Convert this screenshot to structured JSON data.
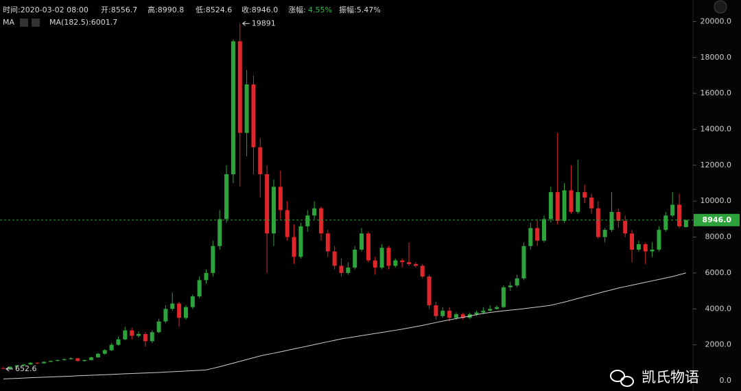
{
  "header": {
    "time": "时间:2020-03-02 08:00",
    "open": "开:8556.7",
    "high": "高:8990.8",
    "low": "低:8524.6",
    "close": "收:8946.0",
    "change_label": "涨幅:",
    "change": "4.55%",
    "amplitude": "振幅:5.47%",
    "ma_title": "MA",
    "ma_value": "MA(182.5):6001.7"
  },
  "watermark": "凯氏物语",
  "chart_data": {
    "type": "candlestick",
    "up_color": "#2fa33b",
    "down_color": "#e0262a",
    "ylim": [
      0,
      21200
    ],
    "yticks": [
      {
        "value": 0,
        "label": "0.0"
      },
      {
        "value": 2000,
        "label": "2000.0"
      },
      {
        "value": 4000,
        "label": "4000.0"
      },
      {
        "value": 6000,
        "label": "6000.0"
      },
      {
        "value": 8000,
        "label": "8000.0"
      },
      {
        "value": 10000,
        "label": "10000.0"
      },
      {
        "value": 12000,
        "label": "12000.0"
      },
      {
        "value": 14000,
        "label": "14000.0"
      },
      {
        "value": 16000,
        "label": "16000.0"
      },
      {
        "value": 18000,
        "label": "18000.0"
      },
      {
        "value": 20000,
        "label": "20000.0"
      }
    ],
    "last_price": {
      "value": 8946.0,
      "label": "8946.0",
      "color": "#2fa33b"
    },
    "annotations": [
      {
        "value": 19891,
        "label": "19891",
        "index": 35
      },
      {
        "value": 652.6,
        "label": "652.6",
        "index": 0
      }
    ],
    "open": [
      700,
      680,
      780,
      850,
      900,
      1000,
      970,
      1050,
      1100,
      1150,
      1200,
      1250,
      1100,
      1150,
      1300,
      1500,
      1700,
      2000,
      2300,
      2800,
      2500,
      2600,
      2200,
      2700,
      3300,
      4000,
      4300,
      3500,
      4100,
      4700,
      5600,
      6000,
      7500,
      9000,
      11500,
      18900,
      13800,
      16500,
      13000,
      11500,
      8200,
      10800,
      9500,
      8000,
      6900,
      8600,
      9200,
      9600,
      8200,
      7200,
      6400,
      6000,
      6300,
      7300,
      8200,
      6700,
      6300,
      7400,
      6400,
      6700,
      6600,
      6500,
      6400,
      5800,
      4200,
      3600,
      3900,
      3500,
      3700,
      3500,
      3700,
      3800,
      3900,
      4000,
      4100,
      5200,
      5300,
      5700,
      7500,
      8500,
      7800,
      9000,
      10500,
      8900,
      10600,
      9400,
      10500,
      10200,
      9600,
      8000,
      8400,
      9400,
      8900,
      8200,
      7300,
      7600,
      7200,
      7300,
      8400,
      9200,
      9800,
      8556.7
    ],
    "high": [
      760,
      800,
      880,
      930,
      1030,
      1020,
      1080,
      1130,
      1180,
      1240,
      1300,
      1270,
      1180,
      1350,
      1550,
      1750,
      2100,
      2450,
      3000,
      2950,
      2750,
      2700,
      2800,
      3450,
      4200,
      4900,
      4400,
      4200,
      4800,
      5800,
      6200,
      7800,
      9500,
      12000,
      19000,
      19891,
      17300,
      17000,
      13500,
      12000,
      11200,
      11700,
      10000,
      8700,
      8800,
      9500,
      10000,
      9700,
      8400,
      7500,
      6800,
      6600,
      7500,
      8500,
      8300,
      6900,
      7600,
      7500,
      6800,
      6800,
      7700,
      6600,
      6500,
      5900,
      4400,
      4100,
      4100,
      3800,
      3800,
      3800,
      3900,
      4100,
      4200,
      4200,
      5300,
      5500,
      5900,
      7700,
      8800,
      9000,
      9200,
      10800,
      13800,
      11000,
      12000,
      12300,
      10900,
      10400,
      10000,
      8500,
      10500,
      9600,
      9200,
      8400,
      7800,
      7700,
      7700,
      8600,
      9400,
      10500,
      10400,
      8990.8
    ],
    "low": [
      652.6,
      670,
      760,
      820,
      880,
      930,
      950,
      1020,
      1080,
      1120,
      1180,
      1050,
      1060,
      1130,
      1280,
      1450,
      1650,
      1950,
      2250,
      2300,
      2400,
      1900,
      2100,
      2650,
      3200,
      3900,
      3000,
      3400,
      4000,
      4600,
      5400,
      5800,
      7300,
      8800,
      11000,
      10800,
      12500,
      11500,
      10200,
      6000,
      7500,
      9000,
      7800,
      6500,
      6800,
      8300,
      9000,
      7800,
      6900,
      6200,
      5800,
      5900,
      6200,
      7200,
      6600,
      5900,
      6200,
      6200,
      6300,
      6300,
      6400,
      6300,
      5700,
      4000,
      3400,
      3500,
      3300,
      3400,
      3400,
      3450,
      3600,
      3700,
      3850,
      3950,
      4050,
      5000,
      5200,
      5600,
      7300,
      7500,
      7700,
      8800,
      8700,
      8800,
      9300,
      9300,
      9900,
      9300,
      7900,
      7700,
      8300,
      8500,
      8000,
      6600,
      7200,
      6500,
      6900,
      7200,
      8300,
      9100,
      8500,
      8524.6
    ],
    "close": [
      680,
      780,
      850,
      900,
      1000,
      970,
      1050,
      1100,
      1150,
      1200,
      1250,
      1100,
      1150,
      1300,
      1500,
      1700,
      2000,
      2300,
      2800,
      2500,
      2600,
      2200,
      2700,
      3300,
      4000,
      4300,
      3500,
      4100,
      4700,
      5600,
      6000,
      7500,
      9000,
      11500,
      18900,
      13800,
      16500,
      13000,
      11500,
      8200,
      10800,
      9500,
      8000,
      6900,
      8600,
      9200,
      9600,
      8200,
      7200,
      6400,
      6000,
      6300,
      7300,
      8200,
      6700,
      6300,
      7400,
      6400,
      6700,
      6600,
      6500,
      6400,
      5800,
      4200,
      3600,
      3900,
      3500,
      3700,
      3500,
      3700,
      3800,
      3900,
      4000,
      4100,
      5200,
      5300,
      5700,
      7500,
      8500,
      7800,
      9000,
      10500,
      8900,
      10600,
      9400,
      10500,
      10200,
      9600,
      8000,
      8400,
      9400,
      8900,
      8200,
      7300,
      7600,
      7200,
      7300,
      8400,
      9200,
      9800,
      8600,
      8946.0
    ],
    "ma": {
      "color": "#d0d0d0",
      "values": [
        100,
        115,
        130,
        150,
        165,
        180,
        195,
        210,
        225,
        240,
        255,
        275,
        290,
        305,
        320,
        335,
        350,
        370,
        385,
        400,
        415,
        430,
        445,
        460,
        480,
        500,
        520,
        540,
        560,
        580,
        600,
        690,
        780,
        880,
        980,
        1080,
        1180,
        1280,
        1380,
        1460,
        1530,
        1610,
        1690,
        1770,
        1850,
        1930,
        2010,
        2090,
        2170,
        2250,
        2330,
        2390,
        2450,
        2510,
        2570,
        2630,
        2690,
        2750,
        2810,
        2870,
        2940,
        3010,
        3080,
        3160,
        3240,
        3320,
        3390,
        3460,
        3530,
        3600,
        3680,
        3750,
        3800,
        3850,
        3890,
        3930,
        3970,
        4010,
        4060,
        4100,
        4150,
        4200,
        4290,
        4380,
        4480,
        4580,
        4680,
        4770,
        4870,
        4970,
        5060,
        5160,
        5240,
        5320,
        5400,
        5480,
        5560,
        5640,
        5720,
        5800,
        5900,
        6001.7
      ]
    }
  }
}
